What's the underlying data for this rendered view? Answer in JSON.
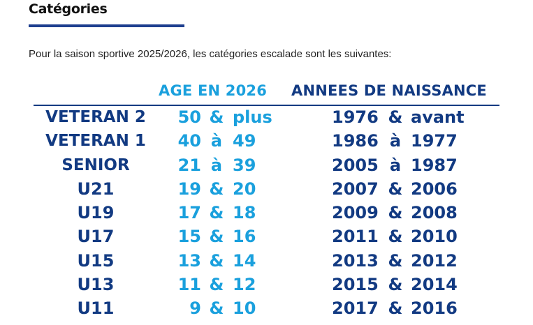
{
  "page": {
    "title": "Catégories",
    "intro": "Pour la saison sportive 2025/2026, les catégories escalade sont les suivantes:"
  },
  "table": {
    "headers": {
      "age": "AGE EN 2026",
      "naissance": "ANNEES DE NAISSANCE"
    },
    "rows": [
      {
        "categorie": "VETERAN 2",
        "age_from": "50",
        "age_sep": "&",
        "age_to": "plus",
        "year_from": "1976",
        "year_sep": "&",
        "year_to": "avant"
      },
      {
        "categorie": "VETERAN 1",
        "age_from": "40",
        "age_sep": "à",
        "age_to": "49",
        "year_from": "1986",
        "year_sep": "à",
        "year_to": "1977"
      },
      {
        "categorie": "SENIOR",
        "age_from": "21",
        "age_sep": "à",
        "age_to": "39",
        "year_from": "2005",
        "year_sep": "à",
        "year_to": "1987"
      },
      {
        "categorie": "U21",
        "age_from": "19",
        "age_sep": "&",
        "age_to": "20",
        "year_from": "2007",
        "year_sep": "&",
        "year_to": "2006"
      },
      {
        "categorie": "U19",
        "age_from": "17",
        "age_sep": "&",
        "age_to": "18",
        "year_from": "2009",
        "year_sep": "&",
        "year_to": "2008"
      },
      {
        "categorie": "U17",
        "age_from": "15",
        "age_sep": "&",
        "age_to": "16",
        "year_from": "2011",
        "year_sep": "&",
        "year_to": "2010"
      },
      {
        "categorie": "U15",
        "age_from": "13",
        "age_sep": "&",
        "age_to": "14",
        "year_from": "2013",
        "year_sep": "&",
        "year_to": "2012"
      },
      {
        "categorie": "U13",
        "age_from": "11",
        "age_sep": "&",
        "age_to": "12",
        "year_from": "2015",
        "year_sep": "&",
        "year_to": "2014"
      },
      {
        "categorie": "U11",
        "age_from": "9",
        "age_sep": "&",
        "age_to": "10",
        "year_from": "2017",
        "year_sep": "&",
        "year_to": "2016"
      }
    ]
  },
  "colors": {
    "dark_blue": "#123a82",
    "light_blue": "#1aa0dd",
    "underline": "#1e3f8f"
  }
}
